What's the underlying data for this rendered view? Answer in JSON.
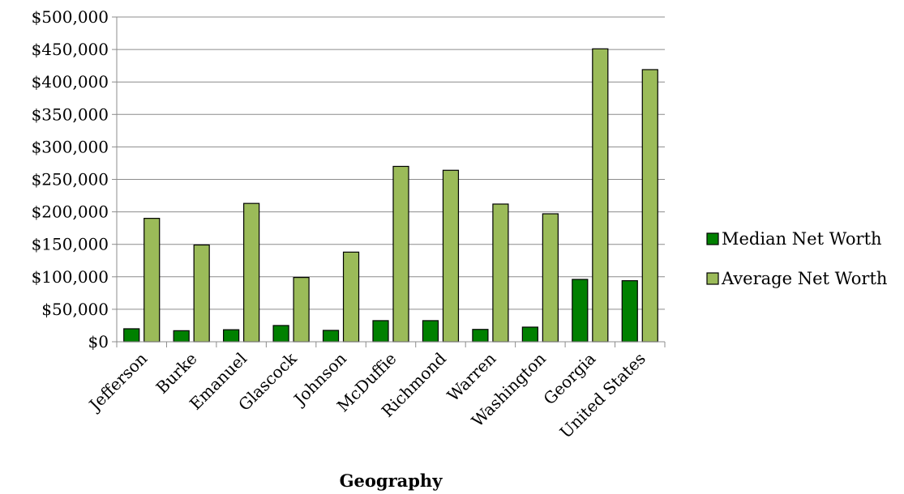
{
  "chart_data": {
    "type": "bar",
    "title": "",
    "xlabel": "Geography",
    "ylabel": "",
    "categories": [
      "Jefferson",
      "Burke",
      "Emanuel",
      "Glascock",
      "Johnson",
      "McDuffie",
      "Richmond",
      "Warren",
      "Washington",
      "Georgia",
      "United States"
    ],
    "series": [
      {
        "name": "Median Net Worth",
        "color": "#008000",
        "values": [
          20000,
          17000,
          18500,
          25000,
          17500,
          32500,
          32500,
          19000,
          22500,
          96000,
          94000
        ]
      },
      {
        "name": "Average Net Worth",
        "color": "#9bbb59",
        "values": [
          190000,
          149000,
          213000,
          99000,
          138000,
          270000,
          264000,
          212000,
          197000,
          451000,
          419000
        ]
      }
    ],
    "ylim": [
      0,
      500000
    ],
    "yticks": [
      0,
      50000,
      100000,
      150000,
      200000,
      250000,
      300000,
      350000,
      400000,
      450000,
      500000
    ],
    "ytick_labels": [
      "$0",
      "$50,000",
      "$100,000",
      "$150,000",
      "$200,000",
      "$250,000",
      "$300,000",
      "$350,000",
      "$400,000",
      "$450,000",
      "$500,000"
    ],
    "grid": true,
    "legend_position": "right"
  }
}
